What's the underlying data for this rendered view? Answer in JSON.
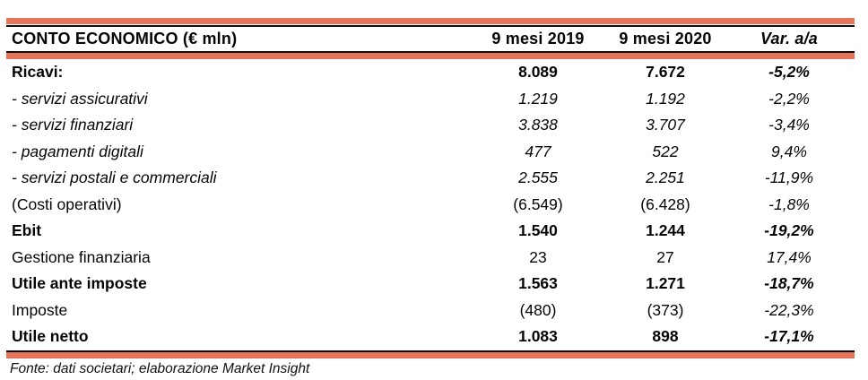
{
  "colors": {
    "accent": "#e5745b",
    "rule": "#0d0d0d",
    "text": "#050505"
  },
  "chart_data": {
    "type": "table",
    "title": "CONTO ECONOMICO (€ mln)",
    "columns": [
      "CONTO ECONOMICO (€ mln)",
      "9 mesi 2019",
      "9 mesi 2020",
      "Var. a/a"
    ],
    "rows": [
      [
        "Ricavi:",
        "8.089",
        "7.672",
        "-5,2%"
      ],
      [
        "- servizi assicurativi",
        "1.219",
        "1.192",
        "-2,2%"
      ],
      [
        "- servizi finanziari",
        "3.838",
        "3.707",
        "-3,4%"
      ],
      [
        "- pagamenti digitali",
        "477",
        "522",
        "9,4%"
      ],
      [
        "- servizi postali e commerciali",
        "2.555",
        "2.251",
        "-11,9%"
      ],
      [
        "(Costi operativi)",
        "(6.549)",
        "(6.428)",
        "-1,8%"
      ],
      [
        "Ebit",
        "1.540",
        "1.244",
        "-19,2%"
      ],
      [
        "Gestione finanziaria",
        "23",
        "27",
        "17,4%"
      ],
      [
        "Utile ante imposte",
        "1.563",
        "1.271",
        "-18,7%"
      ],
      [
        "Imposte",
        "(480)",
        "(373)",
        "-22,3%"
      ],
      [
        "Utile netto",
        "1.083",
        "898",
        "-17,1%"
      ]
    ],
    "row_styles": [
      "bold",
      "italic",
      "italic",
      "italic",
      "italic",
      "regular",
      "bold",
      "regular",
      "bold",
      "regular",
      "bold"
    ],
    "source": "Fonte: dati societari; elaborazione Market Insight"
  }
}
